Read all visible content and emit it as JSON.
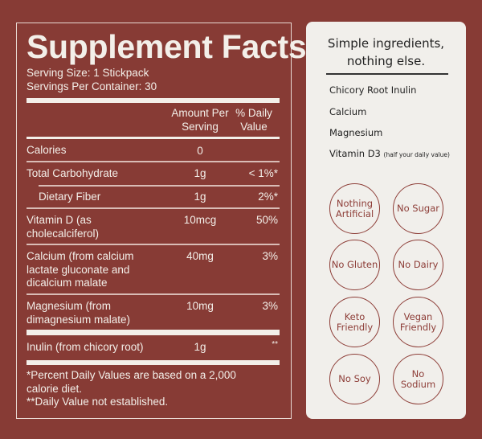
{
  "facts": {
    "title": "Supplement Facts",
    "serving_size": "Serving Size: 1 Stickpack",
    "servings_per_container": "Servings Per Container: 30",
    "header_amount": "Amount Per Serving",
    "header_dv": "% Daily Value",
    "rows": [
      {
        "name": "Calories",
        "amount": "0",
        "dv": ""
      },
      {
        "name": "Total Carbohydrate",
        "amount": "1g",
        "dv": "< 1%*"
      },
      {
        "name": "Dietary Fiber",
        "amount": "1g",
        "dv": "2%*"
      },
      {
        "name": "Vitamin D (as cholecalciferol)",
        "amount": "10mcg",
        "dv": "50%"
      },
      {
        "name": "Calcium (from calcium lactate gluconate and dicalcium malate",
        "amount": "40mg",
        "dv": "3%"
      },
      {
        "name": "Magnesium (from dimagnesium malate)",
        "amount": "10mg",
        "dv": "3%"
      },
      {
        "name": "Inulin (from chicory root)",
        "amount": "1g",
        "dv": "**"
      }
    ],
    "footnote1": "*Percent Daily Values are based on a 2,000 calorie diet.",
    "footnote2": "**Daily Value not established."
  },
  "ingredients": {
    "heading": "Simple ingredients, nothing else.",
    "items": [
      "Chicory Root Inulin",
      "Calcium",
      "Magnesium",
      "Vitamin D3"
    ],
    "vitamin_note": "(half your daily value)"
  },
  "badges": [
    "Nothing Artificial",
    "No Sugar",
    "No Gluten",
    "No Dairy",
    "Keto Friendly",
    "Vegan Friendly",
    "No Soy",
    "No Sodium"
  ],
  "colors": {
    "background": "#873b35",
    "card": "#f1efeb",
    "accent": "#8d3d37"
  }
}
